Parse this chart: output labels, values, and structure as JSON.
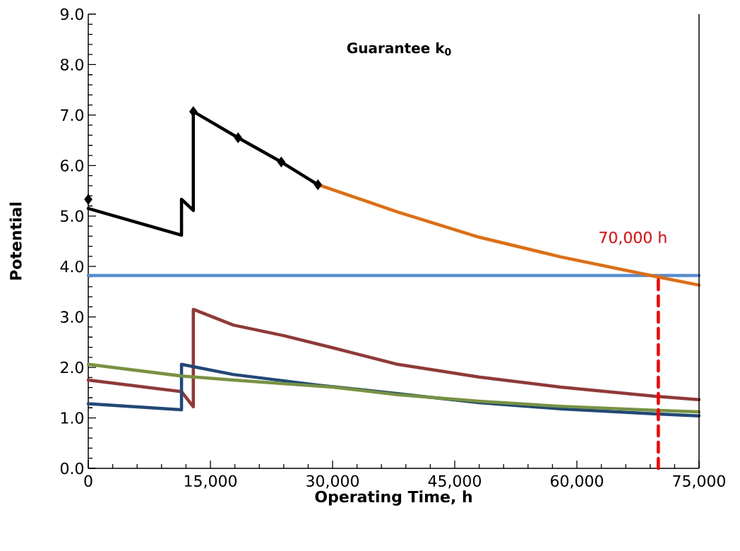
{
  "chart_data": {
    "type": "line",
    "title": "Guarantee k$_{0}$",
    "xlabel": "Operating Time, h",
    "ylabel": "Potential",
    "xlim": [
      0,
      75000
    ],
    "ylim": [
      0,
      9
    ],
    "xticks": [
      0,
      {
        "value": 15000,
        "label": "15,000"
      },
      {
        "value": 30000,
        "label": "30,000"
      },
      {
        "value": 45000,
        "label": "45,000"
      },
      {
        "value": 60000,
        "label": "60,000"
      },
      {
        "value": 75000,
        "label": "75,000"
      }
    ],
    "yticks": [
      {
        "value": 0,
        "label": "0.0"
      },
      {
        "value": 1,
        "label": "1.0"
      },
      {
        "value": 2,
        "label": "2.0"
      },
      {
        "value": 3,
        "label": "3.0"
      },
      {
        "value": 4,
        "label": "4.0"
      },
      {
        "value": 5,
        "label": "5.0"
      },
      {
        "value": 6,
        "label": "6.0"
      },
      {
        "value": 7,
        "label": "7.0"
      },
      {
        "value": 8,
        "label": "8.0"
      },
      {
        "value": 9,
        "label": "9.0"
      }
    ],
    "annotations": [
      {
        "text": "70,000 h",
        "x": 70000,
        "y": 3.82
      }
    ],
    "series": [
      {
        "color": "#558ed5",
        "x": [
          0,
          75000
        ],
        "values": [
          3.82,
          3.82
        ]
      },
      {
        "color": "#e46c0a",
        "x": [
          28200,
          38000,
          48000,
          58000,
          69400,
          75000
        ],
        "values": [
          5.62,
          5.08,
          4.58,
          4.19,
          3.81,
          3.63
        ]
      },
      {
        "color": "#000000",
        "x": [
          0,
          11450,
          11450,
          12900,
          12900,
          18400,
          23700,
          28200
        ],
        "values": [
          5.15,
          4.62,
          5.33,
          5.11,
          7.07,
          6.55,
          6.07,
          5.62
        ]
      },
      {
        "type": "scatter",
        "marker": "diamond",
        "color": "#000000",
        "x": [
          0,
          12900,
          18400,
          23700,
          28200
        ],
        "values": [
          5.33,
          7.07,
          6.55,
          6.07,
          5.62
        ]
      },
      {
        "color": "#953735",
        "x": [
          0,
          11450,
          12900,
          12900,
          17800,
          24000,
          30000,
          38000,
          48000,
          58000,
          69400,
          75000
        ],
        "values": [
          1.75,
          1.52,
          1.22,
          3.15,
          2.84,
          2.63,
          2.39,
          2.06,
          1.81,
          1.61,
          1.43,
          1.36
        ]
      },
      {
        "color": "#1f497d",
        "x": [
          0,
          11450,
          11450,
          17800,
          28200,
          38000,
          48000,
          58000,
          69400,
          75000
        ],
        "values": [
          1.28,
          1.16,
          2.06,
          1.86,
          1.65,
          1.48,
          1.3,
          1.18,
          1.08,
          1.04
        ]
      },
      {
        "color": "#77933c",
        "x": [
          0,
          11450,
          17800,
          30000,
          38000,
          48000,
          58000,
          69400,
          75000
        ],
        "values": [
          2.06,
          1.83,
          1.75,
          1.61,
          1.46,
          1.33,
          1.23,
          1.15,
          1.12
        ]
      },
      {
        "color": "#ff0000",
        "line_style": "dashed",
        "x": [
          70000,
          70000
        ],
        "values": [
          0,
          3.82
        ]
      }
    ]
  }
}
